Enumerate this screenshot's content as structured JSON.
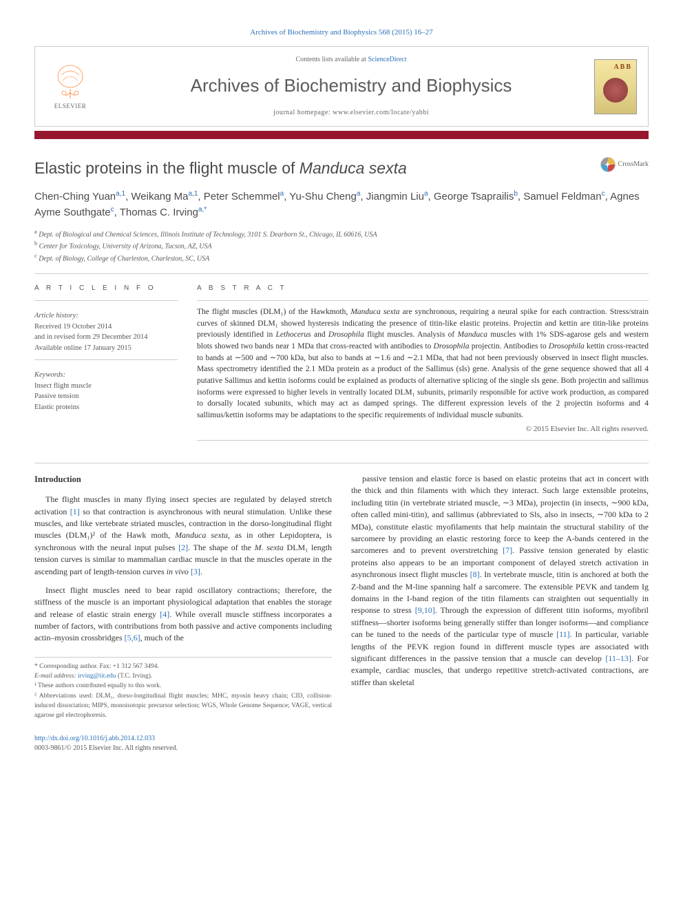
{
  "meta": {
    "citation_line": "Archives of Biochemistry and Biophysics 568 (2015) 16–27",
    "contents_prefix": "Contents lists available at ",
    "contents_link": "ScienceDirect",
    "journal_name": "Archives of Biochemistry and Biophysics",
    "homepage_prefix": "journal homepage: ",
    "homepage_url": "www.elsevier.com/locate/yabbi",
    "elsevier_label": "ELSEVIER",
    "cover_abb": "ABB",
    "accent_color": "#96172e",
    "link_color": "#2a6fb5"
  },
  "crossmark": {
    "label": "CrossMark"
  },
  "title": {
    "prefix": "Elastic proteins in the flight muscle of ",
    "italic_species": "Manduca sexta"
  },
  "authors": [
    {
      "name": "Chen-Ching Yuan",
      "aff": "a,1"
    },
    {
      "name": "Weikang Ma",
      "aff": "a,1"
    },
    {
      "name": "Peter Schemmel",
      "aff": "a"
    },
    {
      "name": "Yu-Shu Cheng",
      "aff": "a"
    },
    {
      "name": "Jiangmin Liu",
      "aff": "a"
    },
    {
      "name": "George Tsaprailis",
      "aff": "b"
    },
    {
      "name": "Samuel Feldman",
      "aff": "c"
    },
    {
      "name": "Agnes Ayme Southgate",
      "aff": "c"
    },
    {
      "name": "Thomas C. Irving",
      "aff": "a,*",
      "corr": true
    }
  ],
  "affiliations": [
    {
      "key": "a",
      "text": "Dept. of Biological and Chemical Sciences, Illinois Institute of Technology, 3101 S. Dearborn St., Chicago, IL 60616, USA"
    },
    {
      "key": "b",
      "text": "Center for Toxicology, University of Arizona, Tucson, AZ, USA"
    },
    {
      "key": "c",
      "text": "Dept. of Biology, College of Charleston, Charleston, SC, USA"
    }
  ],
  "article_info": {
    "label": "A R T I C L E   I N F O",
    "history_label": "Article history:",
    "received": "Received 19 October 2014",
    "revised": "and in revised form 29 December 2014",
    "online": "Available online 17 January 2015",
    "keywords_label": "Keywords:",
    "keywords": [
      "Insect flight muscle",
      "Passive tension",
      "Elastic proteins"
    ]
  },
  "abstract": {
    "label": "A B S T R A C T",
    "text": "The flight muscles (DLM₁) of the Hawkmoth, Manduca sexta are synchronous, requiring a neural spike for each contraction. Stress/strain curves of skinned DLM₁ showed hysteresis indicating the presence of titin-like elastic proteins. Projectin and kettin are titin-like proteins previously identified in Lethocerus and Drosophila flight muscles. Analysis of Manduca muscles with 1% SDS-agarose gels and western blots showed two bands near 1 MDa that cross-reacted with antibodies to Drosophila projectin. Antibodies to Drosophila kettin cross-reacted to bands at ∼500 and ∼700 kDa, but also to bands at ∼1.6 and ∼2.1 MDa, that had not been previously observed in insect flight muscles. Mass spectrometry identified the 2.1 MDa protein as a product of the Sallimus (sls) gene. Analysis of the gene sequence showed that all 4 putative Sallimus and kettin isoforms could be explained as products of alternative splicing of the single sls gene. Both projectin and sallimus isoforms were expressed to higher levels in ventrally located DLM₁ subunits, primarily responsible for active work production, as compared to dorsally located subunits, which may act as damped springs. The different expression levels of the 2 projectin isoforms and 4 sallimus/kettin isoforms may be adaptations to the specific requirements of individual muscle subunits.",
    "copyright": "© 2015 Elsevier Inc. All rights reserved."
  },
  "body": {
    "heading": "Introduction",
    "p1": "The flight muscles in many flying insect species are regulated by delayed stretch activation [1] so that contraction is asynchronous with neural stimulation. Unlike these muscles, and like vertebrate striated muscles, contraction in the dorso-longitudinal flight muscles (DLM₁)² of the Hawk moth, Manduca sexta, as in other Lepidoptera, is synchronous with the neural input pulses [2]. The shape of the M. sexta DLM₁ length tension curves is similar to mammalian cardiac muscle in that the muscles operate in the ascending part of length-tension curves in vivo [3].",
    "p2": "Insect flight muscles need to bear rapid oscillatory contractions; therefore, the stiffness of the muscle is an important physiological adaptation that enables the storage and release of elastic strain energy [4]. While overall muscle stiffness incorporates a number of factors, with contributions from both passive and active components including actin–myosin crossbridges [5,6], much of the",
    "p3": "passive tension and elastic force is based on elastic proteins that act in concert with the thick and thin filaments with which they interact. Such large extensible proteins, including titin (in vertebrate striated muscle, ∼3 MDa), projectin (in insects, ∼900 kDa, often called mini-titin), and sallimus (abbreviated to Sls, also in insects, ∼700 kDa to 2 MDa), constitute elastic myofilaments that help maintain the structural stability of the sarcomere by providing an elastic restoring force to keep the A-bands centered in the sarcomeres and to prevent overstretching [7]. Passive tension generated by elastic proteins also appears to be an important component of delayed stretch activation in asynchronous insect flight muscles [8]. In vertebrate muscle, titin is anchored at both the Z-band and the M-line spanning half a sarcomere. The extensible PEVK and tandem Ig domains in the I-band region of the titin filaments can straighten out sequentially in response to stress [9,10]. Through the expression of different titin isoforms, myofibril stiffness—shorter isoforms being generally stiffer than longer isoforms—and compliance can be tuned to the needs of the particular type of muscle [11]. In particular, variable lengths of the PEVK region found in different muscle types are associated with significant differences in the passive tension that a muscle can develop [11–13]. For example, cardiac muscles, that undergo repetitive stretch-activated contractions, are stiffer than skeletal"
  },
  "footnotes": {
    "corr": "* Corresponding author. Fax: +1 312 567 3494.",
    "email_label": "E-mail address: ",
    "email": "irving@iit.edu",
    "email_person": " (T.C. Irving).",
    "fn1": "¹ These authors contributed equally to this work.",
    "fn2": "² Abbreviations used: DLM₁, dorso-longitudinal flight muscles; MHC, myosin heavy chain; CID, collision-induced dissociation; MIPS, monoisotopic precursor selection; WGS, Whole Genome Sequence; VAGE, vertical agarose gel electrophoresis."
  },
  "footer": {
    "doi": "http://dx.doi.org/10.1016/j.abb.2014.12.033",
    "issn_line": "0003-9861/© 2015 Elsevier Inc. All rights reserved."
  }
}
